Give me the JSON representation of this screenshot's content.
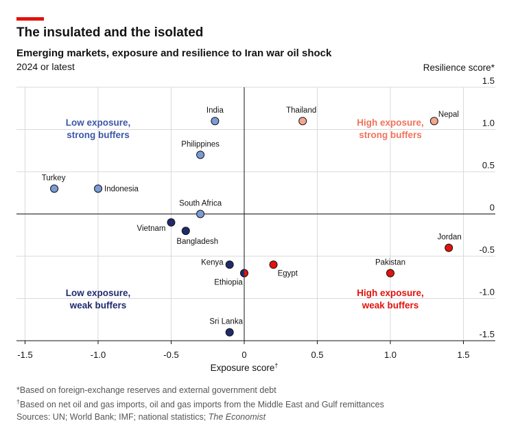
{
  "header": {
    "title": "The insulated and the isolated",
    "subtitle": "Emerging markets, exposure and resilience to Iran war oil shock",
    "period": "2024 or latest"
  },
  "footnotes": {
    "note1": "*Based on foreign-exchange reserves and external government debt",
    "note2_mark": "†",
    "note2": "Based on net oil and gas imports, oil and gas imports from the Middle East and Gulf remittances",
    "sources_prefix": "Sources: UN; World Bank; IMF; national statistics; ",
    "sources_em": "The Economist"
  },
  "colors": {
    "low_strong": "#7b9bd6",
    "low_weak": "#1f2b6e",
    "high_strong": "#f6a590",
    "high_weak": "#e3120b",
    "quad_label_blue": "#3b57a7",
    "quad_label_navy": "#1f2b6e",
    "quad_label_salmon": "#f0735a",
    "quad_label_red": "#e3120b",
    "accent": "#e3120b"
  },
  "chart_data": {
    "type": "scatter",
    "xlabel": "Exposure score",
    "xlabel_mark": "†",
    "ylabel": "Resilience score*",
    "xlim": [
      -1.6,
      1.7
    ],
    "ylim": [
      -1.5,
      1.5
    ],
    "xticks": [
      "-1.5",
      "-1.0",
      "-0.5",
      "0",
      "0.5",
      "1.0",
      "1.5"
    ],
    "xtick_values": [
      -1.5,
      -1.0,
      -0.5,
      0,
      0.5,
      1.0,
      1.5
    ],
    "yticks": [
      "1.5",
      "1.0",
      "0.5",
      "0",
      "-0.5",
      "-1.0",
      "-1.5"
    ],
    "ytick_values": [
      1.5,
      1.0,
      0.5,
      0,
      -0.5,
      -1.0,
      -1.5
    ],
    "quadrant_labels": [
      {
        "line1": "Low exposure,",
        "line2": "strong buffers",
        "color_key": "quad_label_blue"
      },
      {
        "line1": "High exposure,",
        "line2": "strong buffers",
        "color_key": "quad_label_salmon"
      },
      {
        "line1": "Low exposure,",
        "line2": "weak buffers",
        "color_key": "quad_label_navy"
      },
      {
        "line1": "High exposure,",
        "line2": "weak buffers",
        "color_key": "quad_label_red"
      }
    ],
    "points": [
      {
        "name": "India",
        "x": -0.2,
        "y": 1.1,
        "group": "low_strong"
      },
      {
        "name": "Thailand",
        "x": 0.4,
        "y": 1.1,
        "group": "high_strong"
      },
      {
        "name": "Nepal",
        "x": 1.3,
        "y": 1.1,
        "group": "high_strong"
      },
      {
        "name": "Philippines",
        "x": -0.3,
        "y": 0.7,
        "group": "low_strong"
      },
      {
        "name": "Turkey",
        "x": -1.3,
        "y": 0.3,
        "group": "low_strong"
      },
      {
        "name": "Indonesia",
        "x": -1.0,
        "y": 0.3,
        "group": "low_strong"
      },
      {
        "name": "South Africa",
        "x": -0.3,
        "y": 0.0,
        "group": "low_strong"
      },
      {
        "name": "Vietnam",
        "x": -0.5,
        "y": -0.1,
        "group": "low_weak"
      },
      {
        "name": "Bangladesh",
        "x": -0.4,
        "y": -0.2,
        "group": "low_weak"
      },
      {
        "name": "Jordan",
        "x": 1.4,
        "y": -0.4,
        "group": "high_weak"
      },
      {
        "name": "Kenya",
        "x": -0.1,
        "y": -0.6,
        "group": "low_weak"
      },
      {
        "name": "Egypt",
        "x": 0.2,
        "y": -0.6,
        "group": "high_weak"
      },
      {
        "name": "Pakistan",
        "x": 1.0,
        "y": -0.7,
        "group": "high_weak"
      },
      {
        "name": "Ethiopia",
        "x": 0.0,
        "y": -0.7,
        "group": "split"
      },
      {
        "name": "Sri Lanka",
        "x": -0.1,
        "y": -1.4,
        "group": "low_weak"
      }
    ]
  }
}
